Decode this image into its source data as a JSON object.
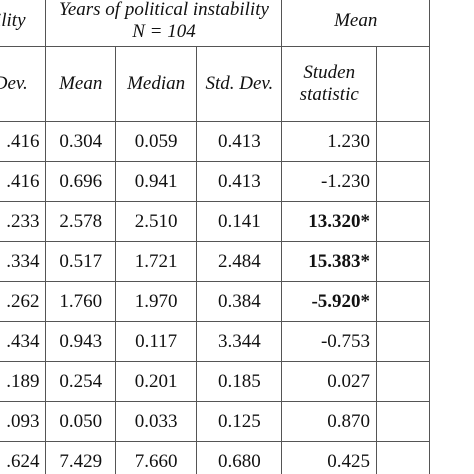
{
  "table": {
    "group_headers": {
      "left_fragment": "ability",
      "instability_title": "Years of political instability",
      "instability_n": "N = 104",
      "right_fragment": "Mean"
    },
    "sub_headers": {
      "left_fragment": "d. Dev.",
      "mean": "Mean",
      "median": "Median",
      "std_dev": "Std. Dev.",
      "student_line1": "Studen",
      "student_line2": "statistic"
    },
    "rows": [
      {
        "left": ".416",
        "mean": "0.304",
        "median": "0.059",
        "std": "0.413",
        "stat": "1.230",
        "bold": false
      },
      {
        "left": ".416",
        "mean": "0.696",
        "median": "0.941",
        "std": "0.413",
        "stat": "-1.230",
        "bold": false
      },
      {
        "left": ".233",
        "mean": "2.578",
        "median": "2.510",
        "std": "0.141",
        "stat": "13.320*",
        "bold": true
      },
      {
        "left": ".334",
        "mean": "0.517",
        "median": "1.721",
        "std": "2.484",
        "stat": "15.383*",
        "bold": true
      },
      {
        "left": ".262",
        "mean": "1.760",
        "median": "1.970",
        "std": "0.384",
        "stat": "-5.920*",
        "bold": true
      },
      {
        "left": ".434",
        "mean": "0.943",
        "median": "0.117",
        "std": "3.344",
        "stat": "-0.753",
        "bold": false
      },
      {
        "left": ".189",
        "mean": "0.254",
        "median": "0.201",
        "std": "0.185",
        "stat": "0.027",
        "bold": false
      },
      {
        "left": ".093",
        "mean": "0.050",
        "median": "0.033",
        "std": "0.125",
        "stat": "0.870",
        "bold": false
      },
      {
        "left": ".624",
        "mean": "7.429",
        "median": "7.660",
        "std": "0.680",
        "stat": "0.425",
        "bold": false
      }
    ]
  }
}
